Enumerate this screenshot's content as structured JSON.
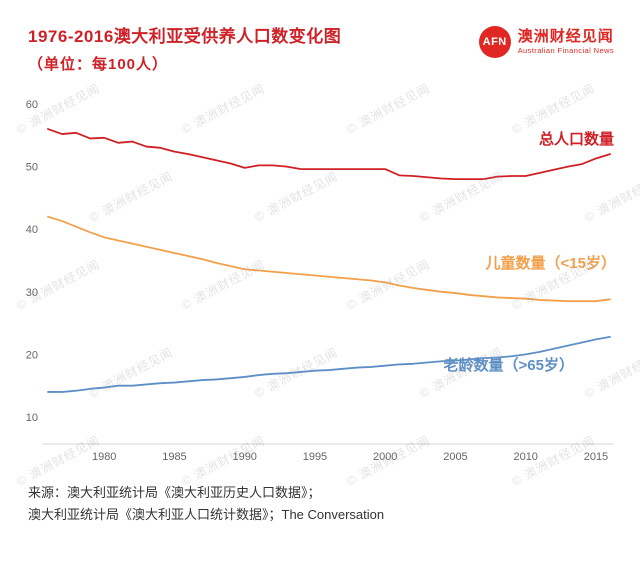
{
  "header": {
    "title_line1": "1976-2016澳大利亚受供养人口数变化图",
    "title_line2": "（单位：每100人）",
    "logo": {
      "abbr": "AFN",
      "name_cn": "澳洲财经见闻",
      "name_en": "Australian Financial News"
    }
  },
  "watermark_text": "© 澳洲财经见闻",
  "chart_data": {
    "type": "line",
    "title": "1976-2016澳大利亚受供养人口数变化图（单位：每100人）",
    "xlabel": "",
    "ylabel": "",
    "ylim": [
      10,
      60
    ],
    "yticks": [
      10,
      20,
      30,
      40,
      50,
      60
    ],
    "xticks": [
      1980,
      1985,
      1990,
      1995,
      2000,
      2005,
      2010,
      2015
    ],
    "grid": false,
    "legend_position": "inline-right",
    "x": [
      1976,
      1977,
      1978,
      1979,
      1980,
      1981,
      1982,
      1983,
      1984,
      1985,
      1986,
      1987,
      1988,
      1989,
      1990,
      1991,
      1992,
      1993,
      1994,
      1995,
      1996,
      1997,
      1998,
      1999,
      2000,
      2001,
      2002,
      2003,
      2004,
      2005,
      2006,
      2007,
      2008,
      2009,
      2010,
      2011,
      2012,
      2013,
      2014,
      2015,
      2016
    ],
    "series": [
      {
        "name": "总人口数量",
        "color": "#cf2026",
        "values": [
          56.0,
          55.2,
          55.4,
          54.5,
          54.6,
          53.8,
          54.0,
          53.2,
          53.0,
          52.4,
          52.0,
          51.5,
          51.0,
          50.5,
          49.8,
          50.2,
          50.2,
          50.0,
          49.6,
          49.6,
          49.6,
          49.6,
          49.6,
          49.6,
          49.6,
          48.6,
          48.5,
          48.3,
          48.1,
          48.0,
          48.0,
          48.0,
          48.4,
          48.5,
          48.5,
          49.0,
          49.5,
          50.0,
          50.4,
          51.3,
          52.0
        ]
      },
      {
        "name": "儿童数量（<15岁）",
        "color": "#f2a04b",
        "values": [
          42.0,
          41.3,
          40.4,
          39.5,
          38.7,
          38.2,
          37.7,
          37.2,
          36.7,
          36.2,
          35.7,
          35.2,
          34.6,
          34.1,
          33.6,
          33.4,
          33.2,
          33.0,
          32.8,
          32.6,
          32.4,
          32.2,
          32.0,
          31.8,
          31.5,
          31.0,
          30.6,
          30.3,
          30.0,
          29.8,
          29.5,
          29.3,
          29.1,
          29.0,
          28.9,
          28.7,
          28.6,
          28.5,
          28.5,
          28.5,
          28.8
        ]
      },
      {
        "name": "老龄数量（>65岁）",
        "color": "#5d8fc7",
        "values": [
          14.0,
          14.0,
          14.2,
          14.5,
          14.7,
          15.0,
          15.0,
          15.2,
          15.4,
          15.5,
          15.7,
          15.9,
          16.0,
          16.2,
          16.4,
          16.7,
          16.9,
          17.0,
          17.2,
          17.4,
          17.5,
          17.7,
          17.9,
          18.0,
          18.2,
          18.4,
          18.5,
          18.7,
          18.9,
          19.0,
          19.2,
          19.4,
          19.5,
          19.7,
          20.0,
          20.4,
          20.9,
          21.4,
          21.9,
          22.4,
          22.8
        ]
      }
    ]
  },
  "source": {
    "line1": "来源：澳大利亚统计局《澳大利亚历史人口数据》；",
    "line2": "澳大利亚统计局《澳大利亚人口统计数据》；The Conversation"
  }
}
